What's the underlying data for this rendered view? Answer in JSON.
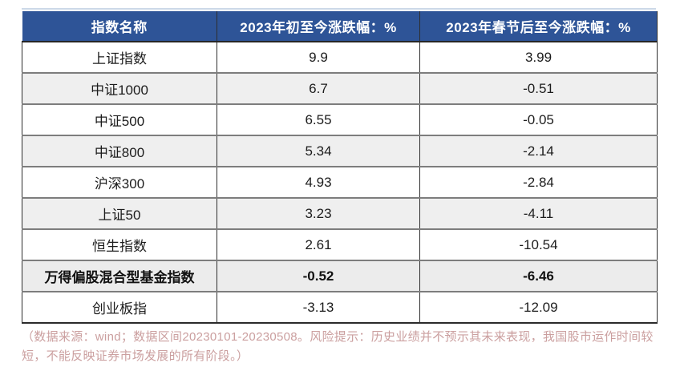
{
  "table": {
    "columns": [
      "指数名称",
      "2023年初至今涨跌幅：%",
      "2023年春节后至今涨跌幅：%"
    ],
    "rows": [
      {
        "name": "上证指数",
        "ytd_change": "9.9",
        "post_festival_change": "3.99",
        "bold": false
      },
      {
        "name": "中证1000",
        "ytd_change": "6.7",
        "post_festival_change": "-0.51",
        "bold": false
      },
      {
        "name": "中证500",
        "ytd_change": "6.55",
        "post_festival_change": "-0.05",
        "bold": false
      },
      {
        "name": "中证800",
        "ytd_change": "5.34",
        "post_festival_change": "-2.14",
        "bold": false
      },
      {
        "name": "沪深300",
        "ytd_change": "4.93",
        "post_festival_change": "-2.84",
        "bold": false
      },
      {
        "name": "上证50",
        "ytd_change": "3.23",
        "post_festival_change": "-4.11",
        "bold": false
      },
      {
        "name": "恒生指数",
        "ytd_change": "2.61",
        "post_festival_change": "-10.54",
        "bold": false
      },
      {
        "name": "万得偏股混合型基金指数",
        "ytd_change": "-0.52",
        "post_festival_change": "-6.46",
        "bold": true
      },
      {
        "name": "创业板指",
        "ytd_change": "-3.13",
        "post_festival_change": "-12.09",
        "bold": false
      }
    ]
  },
  "footnote": "（数据来源：wind；数据区间20230101-20230508。风险提示：历史业绩并不预示其未来表现，我国股市运作时间较短，不能反映证券市场发展的所有阶段。）",
  "colors": {
    "header_bg": "#2e5497",
    "header_text": "#ffffff",
    "alt_row_bg": "#efefef",
    "bold_row_bg": "#ececec",
    "footnote_text": "#cb9f9f",
    "row_divider": "#7d7d7d"
  },
  "chart_data": {
    "type": "table",
    "title": "",
    "columns": [
      "指数名称",
      "2023年初至今涨跌幅：%",
      "2023年春节后至今涨跌幅：%"
    ],
    "categories": [
      "上证指数",
      "中证1000",
      "中证500",
      "中证800",
      "沪深300",
      "上证50",
      "恒生指数",
      "万得偏股混合型基金指数",
      "创业板指"
    ],
    "series": [
      {
        "name": "2023年初至今涨跌幅：%",
        "values": [
          9.9,
          6.7,
          6.55,
          5.34,
          4.93,
          3.23,
          2.61,
          -0.52,
          -3.13
        ]
      },
      {
        "name": "2023年春节后至今涨跌幅：%",
        "values": [
          3.99,
          -0.51,
          -0.05,
          -2.14,
          -2.84,
          -4.11,
          -10.54,
          -6.46,
          -12.09
        ]
      }
    ]
  }
}
